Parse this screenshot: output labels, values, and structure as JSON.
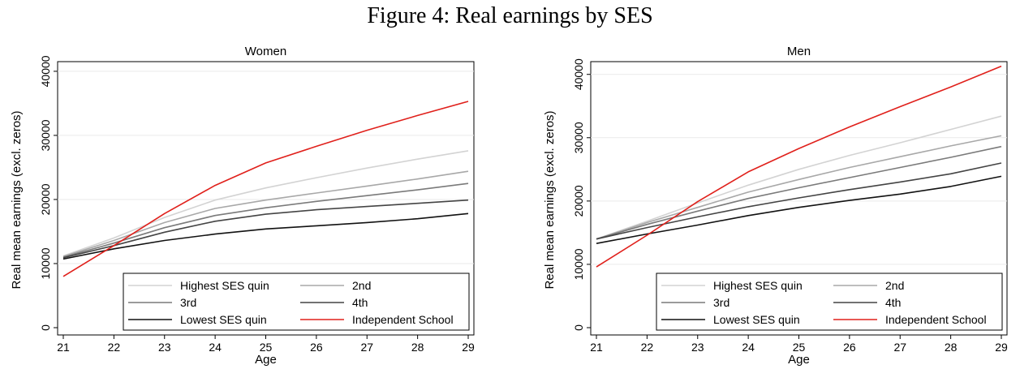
{
  "figure_title": "Figure 4: Real earnings by SES",
  "chart_data": [
    {
      "type": "line",
      "title": "Women",
      "xlabel": "Age",
      "ylabel": "Real mean earnings (excl. zeros)",
      "xlim": [
        21,
        29
      ],
      "ylim": [
        0,
        41000
      ],
      "xticks": [
        21,
        22,
        23,
        24,
        25,
        26,
        27,
        28,
        29
      ],
      "yticks": [
        0,
        10000,
        20000,
        30000,
        40000
      ],
      "grid": true,
      "legend_position": "bottom-right",
      "x": [
        21,
        22,
        23,
        24,
        25,
        26,
        27,
        28,
        29
      ],
      "series": [
        {
          "name": "Highest SES quin",
          "color": "#d3d3d3",
          "values": [
            11200,
            14000,
            17200,
            19900,
            21800,
            23400,
            24900,
            26300,
            27600
          ]
        },
        {
          "name": "2nd",
          "color": "#a8a8a8",
          "values": [
            11100,
            13600,
            16400,
            18600,
            19900,
            21000,
            22100,
            23200,
            24400
          ]
        },
        {
          "name": "3rd",
          "color": "#7a7a7a",
          "values": [
            11000,
            13200,
            15600,
            17500,
            18700,
            19700,
            20600,
            21500,
            22500
          ]
        },
        {
          "name": "4th",
          "color": "#444444",
          "values": [
            10900,
            12800,
            14900,
            16600,
            17700,
            18400,
            18900,
            19400,
            19900
          ]
        },
        {
          "name": "Lowest SES quin",
          "color": "#111111",
          "values": [
            10700,
            12300,
            13600,
            14600,
            15400,
            15900,
            16400,
            17000,
            17800
          ]
        },
        {
          "name": "Independent School",
          "color": "#e0201b",
          "values": [
            8000,
            12800,
            17800,
            22200,
            25700,
            28300,
            30800,
            33100,
            35300
          ]
        }
      ]
    },
    {
      "type": "line",
      "title": "Men",
      "xlabel": "Age",
      "ylabel": "Real mean earnings (excl. zeros)",
      "xlim": [
        21,
        29
      ],
      "ylim": [
        0,
        41500
      ],
      "xticks": [
        21,
        22,
        23,
        24,
        25,
        26,
        27,
        28,
        29
      ],
      "yticks": [
        0,
        10000,
        20000,
        30000,
        40000
      ],
      "grid": true,
      "legend_position": "bottom-right",
      "x": [
        21,
        22,
        23,
        24,
        25,
        26,
        27,
        28,
        29
      ],
      "series": [
        {
          "name": "Highest SES quin",
          "color": "#d3d3d3",
          "values": [
            14000,
            16800,
            19700,
            22500,
            25000,
            27200,
            29200,
            31300,
            33400
          ]
        },
        {
          "name": "2nd",
          "color": "#a8a8a8",
          "values": [
            14000,
            16600,
            19000,
            21400,
            23400,
            25300,
            27000,
            28700,
            30300
          ]
        },
        {
          "name": "3rd",
          "color": "#7a7a7a",
          "values": [
            14000,
            16300,
            18400,
            20400,
            22100,
            23700,
            25300,
            26900,
            28600
          ]
        },
        {
          "name": "4th",
          "color": "#444444",
          "values": [
            14000,
            15800,
            17500,
            19100,
            20500,
            21800,
            23000,
            24300,
            26000
          ]
        },
        {
          "name": "Lowest SES quin",
          "color": "#111111",
          "values": [
            13300,
            14800,
            16200,
            17700,
            19000,
            20100,
            21100,
            22300,
            23900
          ]
        },
        {
          "name": "Independent School",
          "color": "#e0201b",
          "values": [
            9600,
            14600,
            19900,
            24600,
            28300,
            31700,
            34900,
            38000,
            41300
          ]
        }
      ]
    }
  ]
}
